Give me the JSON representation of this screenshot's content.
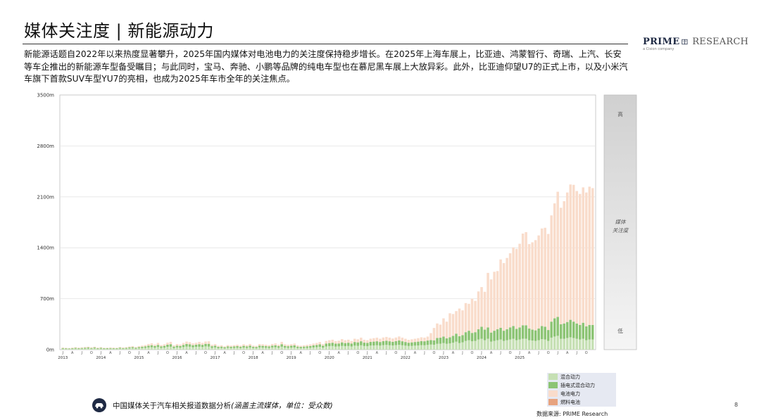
{
  "page": {
    "title": "媒体关注度 | 新能源动力",
    "summary": "新能源话题自2022年以来热度显著攀升，2025年国内媒体对电池电力的关注度保持稳步增长。在2025年上海车展上，比亚迪、鸿蒙智行、奇瑞、上汽、长安等车企推出的新能源车型备受瞩目；与此同时，宝马、奔驰、小鹏等品牌的纯电车型也在慕尼黑车展上大放异彩。此外，比亚迪仰望U7的正式上市，以及小米汽车旗下首款SUV车型YU7的亮相，也成为2025年车市全年的关注焦点。",
    "page_number": "8",
    "source": "数据来源: PRIME Research",
    "footer_text": "中国媒体关于汽车相关报道数据分析",
    "footer_note": "(涵盖主流媒体，单位：受众数)"
  },
  "brand": {
    "name_bold": "PRIME",
    "name_light": "RESEARCH",
    "tagline": "a Cision company"
  },
  "scale_panel": {
    "high": "高",
    "mid_line1": "媒体",
    "mid_line2": "关注度",
    "low": "低"
  },
  "colors": {
    "hybrid": "#c6e0b4",
    "phev": "#8cc474",
    "bev": "#f9dccb",
    "fuel_cell": "#e7a37f"
  },
  "chart_data": {
    "type": "bar",
    "stacked": true,
    "y_ticks": [
      "0m",
      "700m",
      "1400m",
      "2100m",
      "2800m",
      "3500m"
    ],
    "ylim": [
      0,
      3500
    ],
    "unit": "m",
    "month_labels": [
      "J",
      "A",
      "J",
      "O"
    ],
    "years": [
      "2013",
      "2014",
      "2015",
      "2016",
      "2017",
      "2018",
      "2019",
      "2020",
      "2021",
      "2022",
      "2023",
      "2024",
      "2025"
    ],
    "series": [
      {
        "name": "混合动力",
        "color_key": "hybrid",
        "values": [
          12,
          10,
          9,
          12,
          14,
          12,
          13,
          14,
          16,
          13,
          18,
          12,
          14,
          11,
          10,
          12,
          12,
          11,
          15,
          12,
          14,
          18,
          20,
          14,
          20,
          22,
          25,
          30,
          33,
          28,
          35,
          25,
          28,
          38,
          40,
          22,
          30,
          28,
          35,
          42,
          40,
          33,
          38,
          40,
          36,
          45,
          42,
          25,
          30,
          20,
          22,
          18,
          25,
          22,
          24,
          26,
          22,
          28,
          24,
          30,
          22,
          20,
          30,
          28,
          26,
          24,
          30,
          32,
          26,
          40,
          28,
          25,
          28,
          30,
          22,
          20,
          22,
          24,
          26,
          30,
          34,
          38,
          28,
          44,
          48,
          50,
          42,
          45,
          52,
          48,
          50,
          44,
          55,
          52,
          60,
          50,
          48,
          56,
          58,
          60,
          55,
          62,
          65,
          60,
          58,
          62,
          66,
          60,
          55,
          50,
          52,
          55,
          58,
          62,
          60,
          65,
          70,
          68,
          80,
          82,
          90,
          80,
          85,
          95,
          110,
          90,
          100,
          120,
          130,
          115,
          120,
          140,
          150,
          130,
          150,
          110,
          120,
          130,
          140,
          120,
          130,
          140,
          150,
          130,
          140,
          150,
          150,
          130,
          125,
          120,
          130,
          145,
          140,
          120,
          165,
          180,
          190,
          150,
          150,
          160,
          170,
          160,
          150,
          140,
          150,
          130,
          140,
          140
        ]
      },
      {
        "name": "插电式混合动力",
        "color_key": "phev",
        "values": [
          10,
          8,
          7,
          9,
          10,
          9,
          10,
          12,
          13,
          10,
          12,
          9,
          11,
          8,
          9,
          10,
          9,
          8,
          12,
          10,
          11,
          14,
          15,
          12,
          15,
          18,
          20,
          25,
          28,
          22,
          30,
          20,
          24,
          30,
          35,
          20,
          25,
          22,
          30,
          36,
          33,
          28,
          30,
          35,
          30,
          35,
          38,
          22,
          25,
          18,
          20,
          15,
          20,
          18,
          20,
          22,
          18,
          24,
          20,
          25,
          18,
          17,
          25,
          24,
          22,
          20,
          25,
          28,
          22,
          35,
          24,
          22,
          25,
          28,
          20,
          18,
          20,
          22,
          24,
          28,
          30,
          35,
          26,
          40,
          42,
          45,
          40,
          40,
          48,
          42,
          45,
          40,
          50,
          48,
          55,
          46,
          44,
          50,
          52,
          55,
          50,
          55,
          58,
          55,
          50,
          55,
          60,
          55,
          50,
          45,
          48,
          50,
          52,
          56,
          55,
          60,
          62,
          60,
          80,
          82,
          90,
          75,
          85,
          95,
          110,
          95,
          100,
          120,
          130,
          115,
          120,
          140,
          165,
          145,
          155,
          125,
          140,
          150,
          160,
          140,
          150,
          165,
          175,
          155,
          165,
          185,
          185,
          160,
          150,
          145,
          160,
          180,
          175,
          150,
          220,
          250,
          260,
          200,
          210,
          220,
          240,
          225,
          210,
          200,
          220,
          190,
          200,
          200
        ]
      },
      {
        "name": "电池电力",
        "color_key": "bev",
        "values": [
          8,
          7,
          6,
          8,
          10,
          8,
          9,
          11,
          12,
          9,
          11,
          8,
          10,
          7,
          8,
          9,
          8,
          7,
          10,
          9,
          10,
          12,
          14,
          11,
          14,
          16,
          18,
          23,
          26,
          20,
          28,
          18,
          22,
          28,
          32,
          18,
          22,
          20,
          27,
          33,
          30,
          25,
          27,
          32,
          27,
          32,
          35,
          20,
          22,
          16,
          18,
          13,
          18,
          16,
          18,
          20,
          16,
          22,
          18,
          23,
          16,
          15,
          22,
          22,
          20,
          18,
          23,
          25,
          20,
          32,
          22,
          20,
          22,
          25,
          18,
          16,
          18,
          20,
          22,
          25,
          28,
          32,
          24,
          35,
          40,
          42,
          35,
          38,
          45,
          40,
          42,
          35,
          45,
          42,
          50,
          40,
          38,
          45,
          48,
          50,
          45,
          50,
          52,
          50,
          45,
          50,
          55,
          50,
          45,
          40,
          42,
          45,
          48,
          52,
          50,
          55,
          95,
          170,
          200,
          180,
          250,
          230,
          330,
          300,
          310,
          380,
          340,
          400,
          370,
          470,
          430,
          520,
          545,
          520,
          750,
          730,
          810,
          800,
          940,
          930,
          980,
          1020,
          1080,
          1100,
          1150,
          1260,
          1280,
          1160,
          1200,
          1240,
          1280,
          1340,
          1360,
          1320,
          1460,
          1580,
          1720,
          1600,
          1680,
          1780,
          1860,
          1880,
          1820,
          1800,
          1860,
          1840,
          1900,
          1880
        ]
      },
      {
        "name": "燃料电池",
        "color_key": "fuel_cell",
        "values": [
          0,
          0,
          0,
          0,
          0,
          0,
          0,
          0,
          0,
          0,
          0,
          0,
          0,
          0,
          0,
          0,
          0,
          0,
          0,
          0,
          0,
          0,
          0,
          0,
          0,
          0,
          0,
          0,
          0,
          0,
          0,
          0,
          0,
          0,
          0,
          0,
          0,
          0,
          0,
          0,
          0,
          0,
          0,
          0,
          0,
          0,
          0,
          0,
          0,
          0,
          0,
          0,
          0,
          0,
          0,
          0,
          0,
          0,
          0,
          0,
          0,
          0,
          0,
          0,
          0,
          0,
          0,
          0,
          0,
          0,
          0,
          0,
          0,
          0,
          0,
          0,
          0,
          0,
          0,
          0,
          0,
          0,
          0,
          0,
          0,
          0,
          0,
          0,
          0,
          0,
          0,
          0,
          0,
          0,
          0,
          0,
          0,
          0,
          0,
          0,
          0,
          0,
          0,
          0,
          0,
          0,
          0,
          0,
          0,
          0,
          0,
          0,
          0,
          0,
          0,
          0,
          0,
          0,
          0,
          0,
          0,
          0,
          0,
          0,
          0,
          0,
          0,
          0,
          0,
          0,
          0,
          0,
          0,
          0,
          0,
          0,
          0,
          0,
          0,
          0,
          0,
          0,
          0,
          0,
          0,
          0,
          0,
          0,
          0,
          0,
          0,
          0,
          0,
          0,
          0,
          0,
          0,
          0,
          0,
          0,
          0,
          0,
          0,
          0,
          0,
          0,
          0,
          0
        ]
      }
    ],
    "legend_placement": "bottom-right"
  }
}
